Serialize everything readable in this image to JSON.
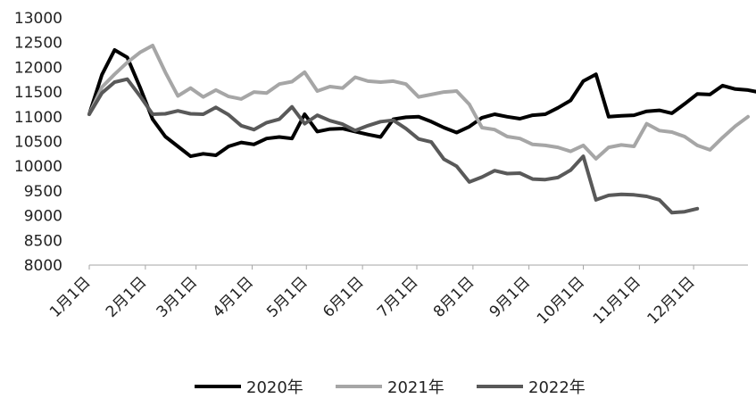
{
  "chart_data": {
    "type": "line",
    "title": "",
    "xlabel": "",
    "ylabel": "",
    "ylim": [
      8000,
      13000
    ],
    "yticks": [
      8000,
      8500,
      9000,
      9500,
      10000,
      10500,
      11000,
      11500,
      12000,
      12500,
      13000
    ],
    "ytick_labels": [
      "8000",
      "8500",
      "9000",
      "9500",
      "10000",
      "10500",
      "11000",
      "11500",
      "12000",
      "12500",
      "13000"
    ],
    "x_unit": "week",
    "x_range": [
      1,
      53
    ],
    "xtick_positions": [
      1,
      5.43,
      9.43,
      13.86,
      18.14,
      22.57,
      26.86,
      31.29,
      35.71,
      40,
      44.43,
      48.71
    ],
    "xtick_labels": [
      "1月1日",
      "2月1日",
      "3月1日",
      "4月1日",
      "5月1日",
      "6月1日",
      "7月1日",
      "8月1日",
      "9月1日",
      "10月1日",
      "11月1日",
      "12月1日"
    ],
    "legend_position": "bottom",
    "grid": false,
    "series": [
      {
        "name": "2020年",
        "color": "#000000",
        "values": [
          11050,
          11850,
          12350,
          12200,
          11600,
          10950,
          10600,
          10400,
          10200,
          10250,
          10220,
          10400,
          10480,
          10440,
          10560,
          10590,
          10560,
          11050,
          10700,
          10750,
          10760,
          10700,
          10640,
          10590,
          10950,
          10990,
          11000,
          10900,
          10780,
          10680,
          10800,
          10980,
          11050,
          11000,
          10960,
          11030,
          11050,
          11180,
          11330,
          11720,
          11860,
          11000,
          11020,
          11030,
          11110,
          11130,
          11070,
          11260,
          11460,
          11450,
          11630,
          11560,
          11540,
          11490
        ]
      },
      {
        "name": "2021年",
        "color": "#a6a6a6",
        "values": [
          11050,
          11600,
          11860,
          12100,
          12300,
          12440,
          11900,
          11420,
          11580,
          11400,
          11540,
          11410,
          11360,
          11500,
          11480,
          11660,
          11710,
          11900,
          11520,
          11610,
          11580,
          11800,
          11720,
          11700,
          11720,
          11660,
          11400,
          11450,
          11500,
          11520,
          11250,
          10780,
          10740,
          10600,
          10560,
          10440,
          10420,
          10380,
          10300,
          10420,
          10150,
          10380,
          10430,
          10400,
          10860,
          10720,
          10690,
          10600,
          10420,
          10330,
          10580,
          10810,
          11000
        ]
      },
      {
        "name": "2022年",
        "color": "#595959",
        "values": [
          11050,
          11480,
          11700,
          11760,
          11420,
          11050,
          11060,
          11120,
          11060,
          11050,
          11190,
          11040,
          10820,
          10740,
          10880,
          10950,
          11200,
          10860,
          11030,
          10920,
          10850,
          10720,
          10820,
          10900,
          10930,
          10760,
          10550,
          10490,
          10140,
          10000,
          9680,
          9780,
          9910,
          9850,
          9860,
          9740,
          9730,
          9770,
          9920,
          10200,
          9320,
          9410,
          9430,
          9420,
          9390,
          9320,
          9060,
          9080,
          9140
        ]
      }
    ]
  },
  "legend": {
    "items": [
      {
        "label": "2020年",
        "color": "#000000"
      },
      {
        "label": "2021年",
        "color": "#a6a6a6"
      },
      {
        "label": "2022年",
        "color": "#595959"
      }
    ]
  }
}
